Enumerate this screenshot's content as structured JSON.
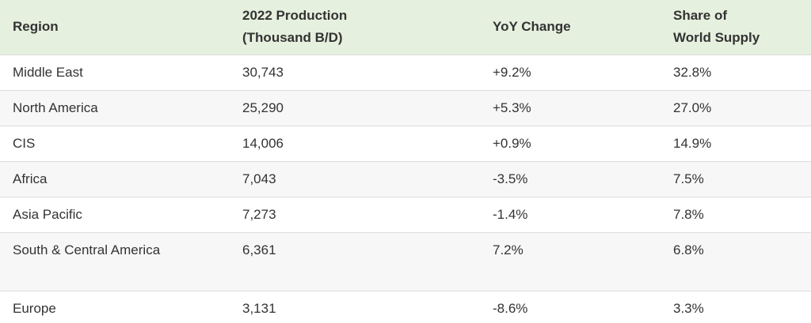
{
  "table": {
    "headers": [
      [
        "Region"
      ],
      [
        "2022 Production",
        "(Thousand B/D)"
      ],
      [
        "YoY Change"
      ],
      [
        "Share of",
        "World Supply"
      ]
    ],
    "rows": [
      [
        "Middle East",
        "30,743",
        "+9.2%",
        "32.8%"
      ],
      [
        "North America",
        "25,290",
        "+5.3%",
        "27.0%"
      ],
      [
        "CIS",
        "14,006",
        "+0.9%",
        "14.9%"
      ],
      [
        "Africa",
        "7,043",
        "-3.5%",
        "7.5%"
      ],
      [
        "Asia Pacific",
        "7,273",
        "-1.4%",
        "7.8%"
      ],
      [
        "South & Central America",
        "6,361",
        "7.2%",
        "6.8%"
      ],
      [
        "Europe",
        "3,131",
        "-8.6%",
        "3.3%"
      ]
    ]
  },
  "colors": {
    "header_bg": "#e6f0de",
    "row_alt_bg": "#f7f7f7",
    "text": "#333333",
    "border": "#dcdcdc"
  }
}
